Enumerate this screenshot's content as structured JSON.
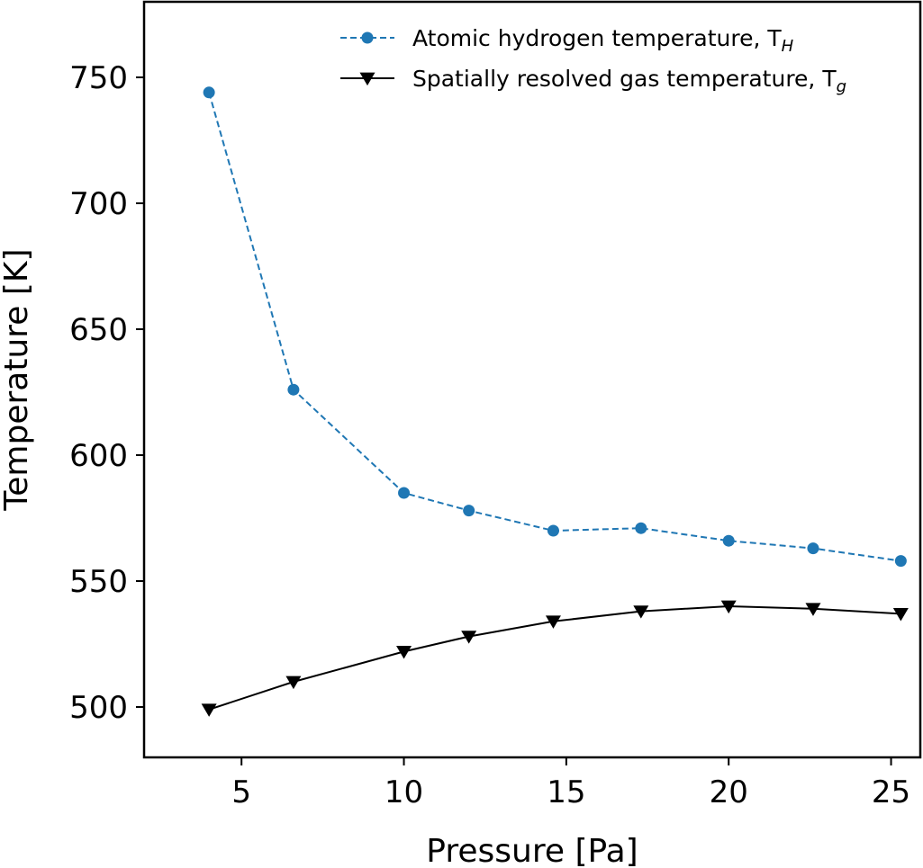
{
  "chart_data": {
    "type": "line",
    "xlabel": "Pressure [Pa]",
    "ylabel": "Temperature [K]",
    "xlim": [
      2,
      25.9
    ],
    "ylim": [
      480,
      780
    ],
    "xticks": [
      5,
      10,
      15,
      20,
      25
    ],
    "yticks": [
      500,
      550,
      600,
      650,
      700,
      750
    ],
    "grid": false,
    "legend_position": "top-right",
    "series": [
      {
        "name": "Atomic hydrogen temperature, T",
        "name_subscript": "H",
        "color": "#1f77b4",
        "line_style": "dashed",
        "marker": "circle",
        "x": [
          4,
          6.6,
          10,
          12,
          14.6,
          17.3,
          20,
          22.6,
          25.3
        ],
        "y": [
          744,
          626,
          585,
          578,
          570,
          571,
          566,
          563,
          558
        ]
      },
      {
        "name": "Spatially resolved gas temperature, T",
        "name_subscript": "g",
        "color": "#000000",
        "line_style": "solid",
        "marker": "triangle-down",
        "x": [
          4,
          6.6,
          10,
          12,
          14.6,
          17.3,
          20,
          22.6,
          25.3
        ],
        "y": [
          499,
          510,
          522,
          528,
          534,
          538,
          540,
          539,
          537
        ]
      }
    ]
  }
}
